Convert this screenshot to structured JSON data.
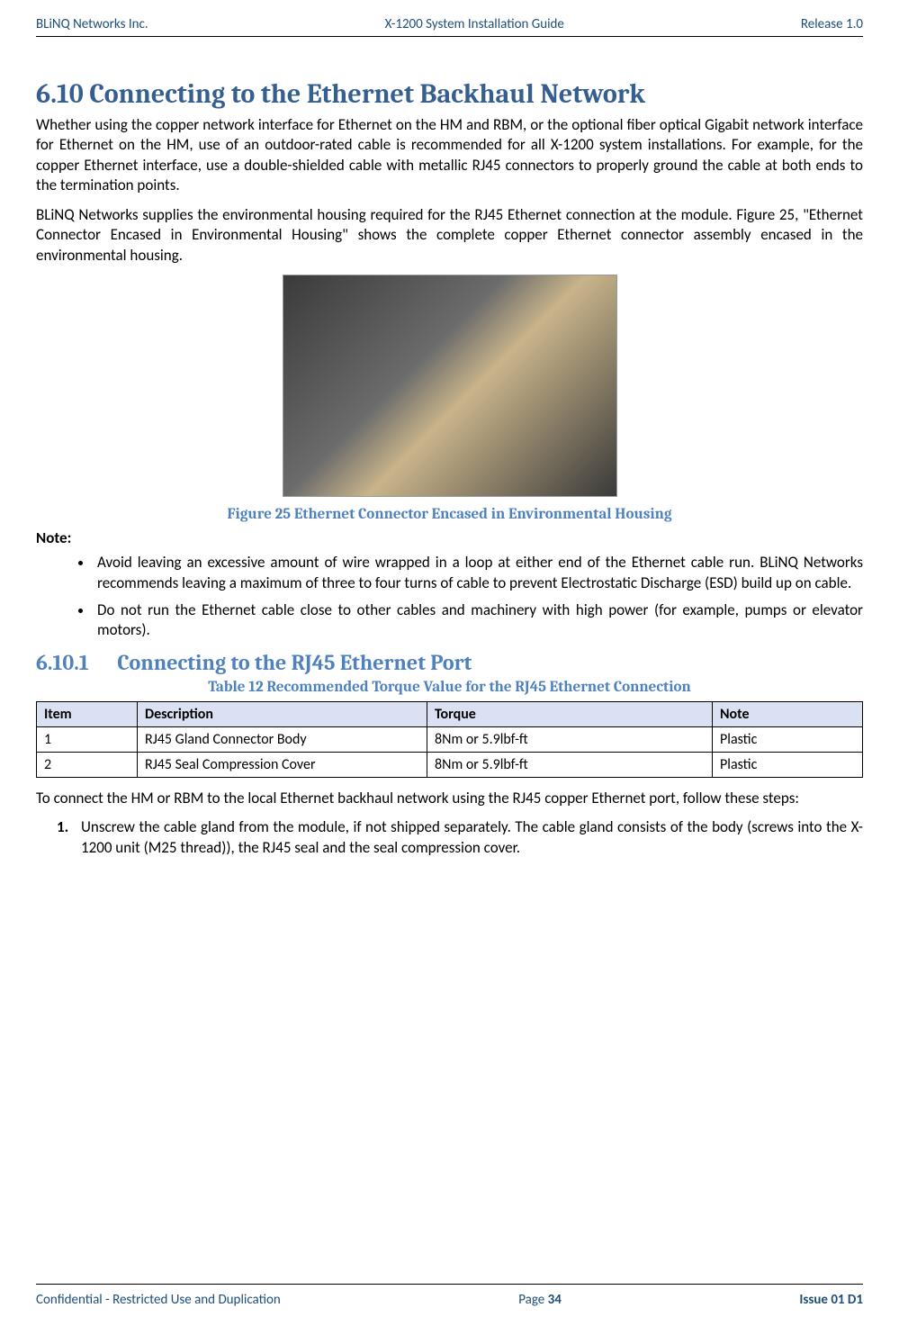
{
  "header": {
    "left": "BLiNQ Networks Inc.",
    "center": "X-1200 System Installation Guide",
    "right": "Release 1.0"
  },
  "section": {
    "number": "6.10",
    "title": "Connecting to the Ethernet Backhaul Network"
  },
  "para1": "Whether using the copper network interface for Ethernet on the HM and RBM, or the optional fiber optical Gigabit network interface for Ethernet on the HM, use of an outdoor-rated cable is recommended for all X-1200 system installations. For example, for the copper Ethernet interface, use a double-shielded cable with metallic RJ45 connectors to properly ground the cable at both ends to the termination points.",
  "para2": "BLiNQ Networks supplies the environmental housing required for the RJ45 Ethernet connection at the module. Figure 25, \"Ethernet Connector Encased in Environmental Housing\" shows the complete copper Ethernet connector assembly encased in the environmental housing.",
  "figure_caption": "Figure 25   Ethernet Connector Encased in Environmental Housing",
  "note_label": "Note:",
  "bullets": [
    "Avoid leaving an excessive amount of wire wrapped in a loop at either end of the Ethernet cable run. BLiNQ Networks recommends leaving a maximum of three to four turns of cable to prevent Electrostatic Discharge (ESD) build up on cable.",
    "Do not run the Ethernet cable close to other cables and machinery with high power (for example, pumps or elevator motors)."
  ],
  "subsection": {
    "number": "6.10.1",
    "title": "Connecting to the RJ45 Ethernet Port"
  },
  "table_caption": "Table 12   Recommended Torque Value for the RJ45 Ethernet Connection",
  "table": {
    "columns": [
      "Item",
      "Description",
      "Torque",
      "Note"
    ],
    "rows": [
      [
        "1",
        "RJ45 Gland Connector Body",
        "8Nm or 5.9lbf-ft",
        "Plastic"
      ],
      [
        "2",
        "RJ45 Seal Compression Cover",
        "8Nm or 5.9lbf-ft",
        "Plastic"
      ]
    ],
    "header_bg": "#d9e1f2",
    "border_color": "#000000"
  },
  "para3": "To connect the HM or RBM to the local Ethernet backhaul network using the RJ45 copper Ethernet port, follow these steps:",
  "steps": [
    "Unscrew the cable gland from the module, if not shipped separately. The cable gland consists of the body (screws into the X-1200 unit (M25 thread)), the RJ45 seal and the seal compression cover."
  ],
  "footer": {
    "left": "Confidential - Restricted Use and Duplication",
    "center_prefix": "Page ",
    "page_number": "34",
    "right": "Issue 01 D1"
  },
  "colors": {
    "heading_dark_blue": "#365f91",
    "heading_blue": "#4f81bd",
    "header_footer_text": "#1f4e79"
  }
}
